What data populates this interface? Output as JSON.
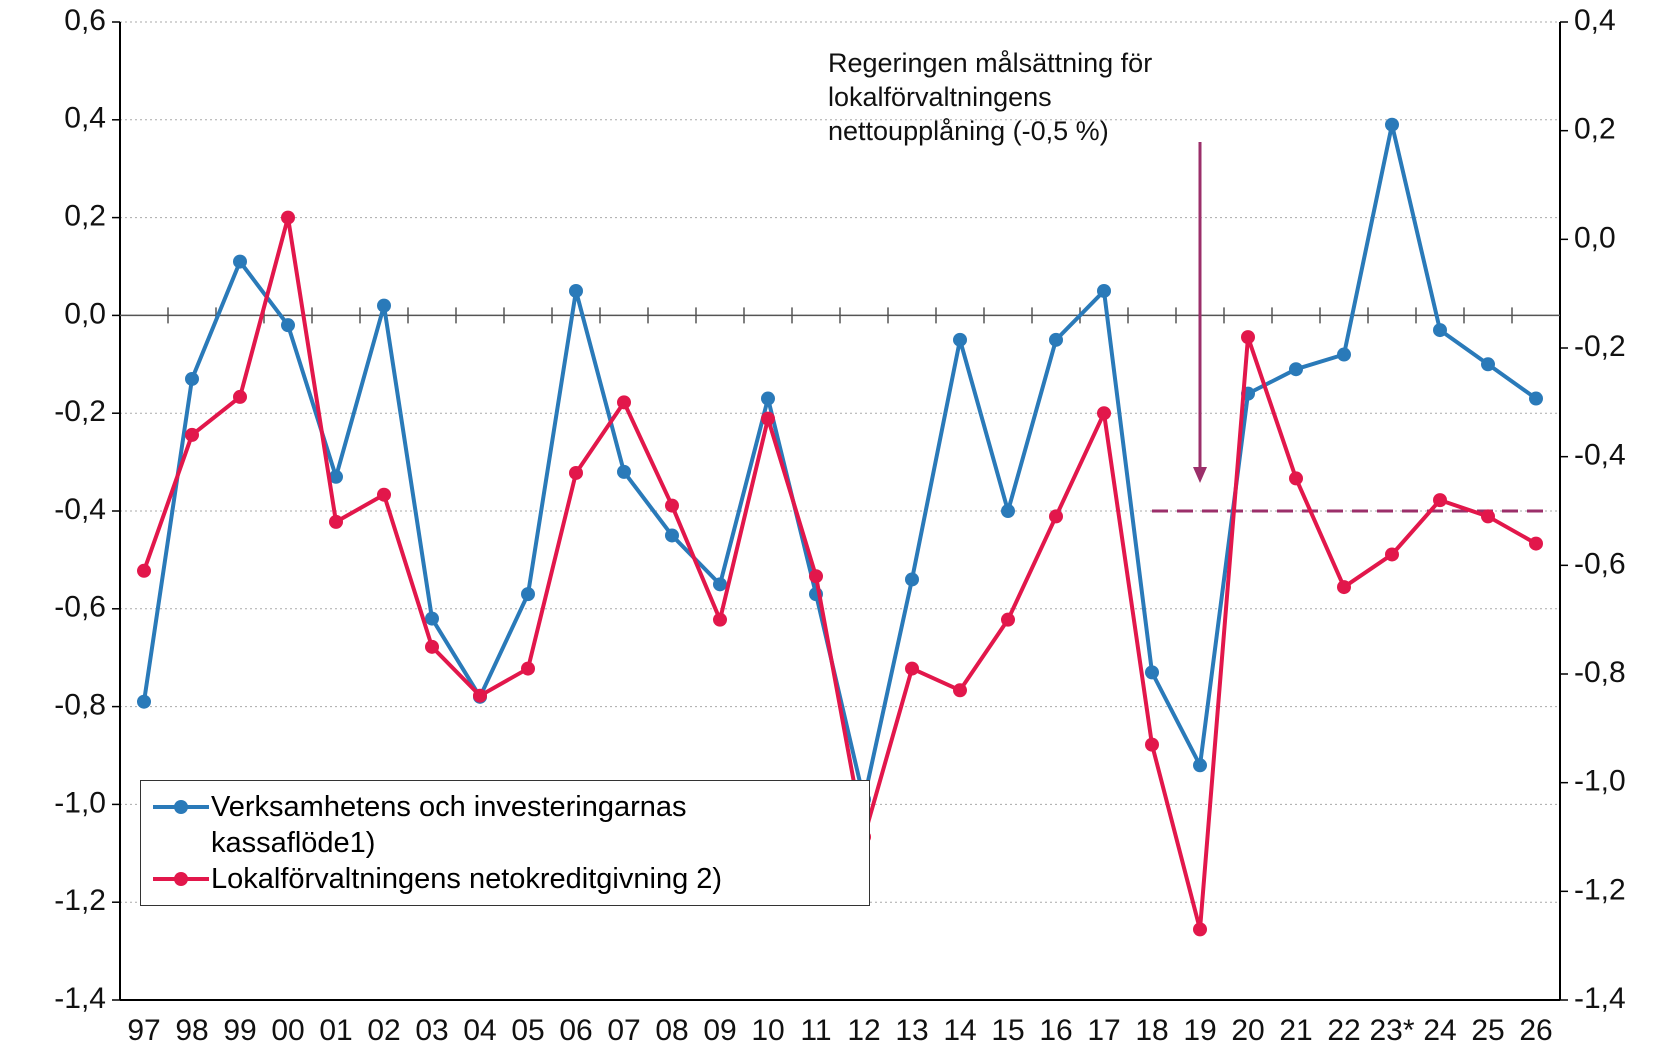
{
  "chart_data": {
    "type": "line",
    "categories": [
      "97",
      "98",
      "99",
      "00",
      "01",
      "02",
      "03",
      "04",
      "05",
      "06",
      "07",
      "08",
      "09",
      "10",
      "11",
      "12",
      "13",
      "14",
      "15",
      "16",
      "17",
      "18",
      "19",
      "20",
      "21",
      "22",
      "23*",
      "24",
      "25",
      "26"
    ],
    "series": [
      {
        "name": "Verksamhetens och investeringarnas kassaflöde1)",
        "color": "#2a7ab9",
        "axis": "y",
        "values": [
          -0.79,
          -0.13,
          0.11,
          -0.02,
          -0.33,
          0.02,
          -0.62,
          -0.78,
          -0.57,
          0.05,
          -0.32,
          -0.45,
          -0.55,
          -0.17,
          -0.57,
          -0.99,
          -0.54,
          -0.05,
          -0.4,
          -0.05,
          0.05,
          -0.73,
          -0.92,
          -0.16,
          -0.11,
          -0.08,
          0.39,
          -0.03,
          -0.1,
          -0.17
        ]
      },
      {
        "name": "Lokalförvaltningens netokreditgivning 2)",
        "color": "#e2174b",
        "axis": "y2",
        "values": [
          -0.61,
          -0.36,
          -0.29,
          0.04,
          -0.52,
          -0.47,
          -0.75,
          -0.84,
          -0.79,
          -0.43,
          -0.3,
          -0.49,
          -0.7,
          -0.33,
          -0.62,
          -1.1,
          -0.79,
          -0.83,
          -0.7,
          -0.51,
          -0.32,
          -0.93,
          -1.27,
          -0.18,
          -0.44,
          -0.64,
          -0.58,
          -0.48,
          -0.51,
          -0.56
        ]
      }
    ],
    "ylim": [
      -1.4,
      0.6
    ],
    "yticks": [
      {
        "value": 0.6,
        "label": "0,6"
      },
      {
        "value": 0.4,
        "label": "0,4"
      },
      {
        "value": 0.2,
        "label": "0,2"
      },
      {
        "value": 0,
        "label": "0,0"
      },
      {
        "value": -0.2,
        "label": "-0,2"
      },
      {
        "value": -0.4,
        "label": "-0,4"
      },
      {
        "value": -0.6,
        "label": "-0,6"
      },
      {
        "value": -0.8,
        "label": "-0,8"
      },
      {
        "value": -1.0,
        "label": "-1,0"
      },
      {
        "value": -1.2,
        "label": "-1,2"
      },
      {
        "value": -1.4,
        "label": "-1,4"
      }
    ],
    "y2lim": [
      -1.4,
      0.4
    ],
    "y2ticks": [
      {
        "value": 0.4,
        "label": "0,4"
      },
      {
        "value": 0.2,
        "label": "0,2"
      },
      {
        "value": 0,
        "label": "0,0"
      },
      {
        "value": -0.2,
        "label": "-0,2"
      },
      {
        "value": -0.4,
        "label": "-0,4"
      },
      {
        "value": -0.6,
        "label": "-0,6"
      },
      {
        "value": -0.8,
        "label": "-0,8"
      },
      {
        "value": -1.0,
        "label": "-1,0"
      },
      {
        "value": -1.2,
        "label": "-1,2"
      },
      {
        "value": -1.4,
        "label": "-1,4"
      }
    ],
    "grid": true,
    "legend": "lower-left",
    "reference_line": {
      "value": -0.5,
      "axis": "y2",
      "from": "18",
      "color": "#9b2f6a"
    },
    "annotation": {
      "lines": [
        "Regeringen målsättning för",
        "lokalförvaltningens",
        "nettoupplåning  (-0,5 %)"
      ],
      "color": "#9b2f6a",
      "arrow_at": "19"
    }
  }
}
